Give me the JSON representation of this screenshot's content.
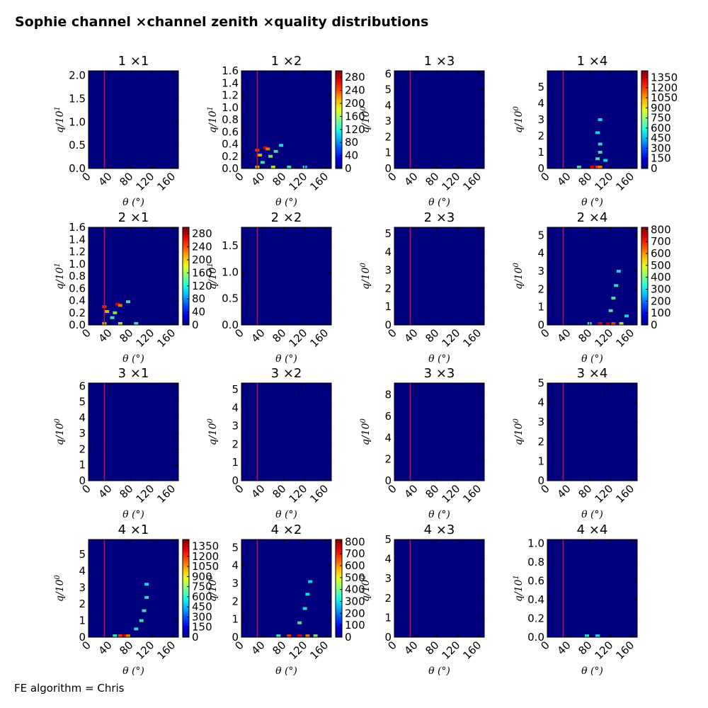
{
  "figure": {
    "title": "Sophie channel ×channel zenith ×quality distributions",
    "footer": "FE algorithm = Chris"
  },
  "colors": {
    "background_low": "#00007f",
    "marker_line": "#ff0000",
    "hotspot_high": "#ffff66"
  },
  "chart_data": {
    "type": "heatmap",
    "colormap": "jet",
    "xlabel": "θ (°)",
    "xlim": [
      0,
      170
    ],
    "xticks": [
      "0",
      "40",
      "80",
      "120",
      "160"
    ],
    "marker_line_x": 30,
    "panels": [
      {
        "title": "1  ×1",
        "ylabel": "q/10^1",
        "ylim": [
          0,
          2.1
        ],
        "yticks": [
          "0.0",
          "0.5",
          "1.0",
          "1.5",
          "2.0"
        ],
        "colorbar": null
      },
      {
        "title": "1  ×2",
        "ylabel": "q/10^1",
        "ylim": [
          0,
          1.6
        ],
        "yticks": [
          "0.0",
          "0.2",
          "0.4",
          "0.6",
          "0.8",
          "1.0",
          "1.2",
          "1.4",
          "1.6"
        ],
        "colorbar": {
          "max": 300,
          "ticks": [
            "0",
            "40",
            "80",
            "120",
            "160",
            "200",
            "240",
            "280"
          ]
        }
      },
      {
        "title": "1  ×3",
        "ylabel": "q/10^0",
        "ylim": [
          0,
          6.2
        ],
        "yticks": [
          "0",
          "1",
          "2",
          "3",
          "4",
          "5",
          "6"
        ],
        "colorbar": null
      },
      {
        "title": "1  ×4",
        "ylabel": "q/10^0",
        "ylim": [
          0,
          6.0
        ],
        "yticks": [
          "0",
          "1",
          "2",
          "3",
          "4",
          "5"
        ],
        "colorbar": {
          "max": 1450,
          "ticks": [
            "0",
            "150",
            "300",
            "450",
            "600",
            "750",
            "900",
            "1050",
            "1200",
            "1350"
          ]
        }
      },
      {
        "title": "2  ×1",
        "ylabel": "q/10^1",
        "ylim": [
          0,
          1.6
        ],
        "yticks": [
          "0.0",
          "0.2",
          "0.4",
          "0.6",
          "0.8",
          "1.0",
          "1.2",
          "1.4",
          "1.6"
        ],
        "colorbar": {
          "max": 300,
          "ticks": [
            "0",
            "40",
            "80",
            "120",
            "160",
            "200",
            "240",
            "280"
          ]
        }
      },
      {
        "title": "2  ×2",
        "ylabel": "q/10^1",
        "ylim": [
          0,
          1.85
        ],
        "yticks": [
          "0.0",
          "0.5",
          "1.0",
          "1.5"
        ],
        "colorbar": null
      },
      {
        "title": "2  ×3",
        "ylabel": "q/10^0",
        "ylim": [
          0,
          5.35
        ],
        "yticks": [
          "0",
          "1",
          "2",
          "3",
          "4",
          "5"
        ],
        "colorbar": null
      },
      {
        "title": "2  ×4",
        "ylabel": "q/10^0",
        "ylim": [
          0,
          5.45
        ],
        "yticks": [
          "0",
          "1",
          "2",
          "3",
          "4",
          "5"
        ],
        "colorbar": {
          "max": 820,
          "ticks": [
            "0",
            "100",
            "200",
            "300",
            "400",
            "500",
            "600",
            "700",
            "800"
          ]
        }
      },
      {
        "title": "3  ×1",
        "ylabel": "q/10^0",
        "ylim": [
          0,
          6.2
        ],
        "yticks": [
          "0",
          "1",
          "2",
          "3",
          "4",
          "5",
          "6"
        ],
        "colorbar": null
      },
      {
        "title": "3  ×2",
        "ylabel": "q/10^0",
        "ylim": [
          0,
          5.35
        ],
        "yticks": [
          "0",
          "1",
          "2",
          "3",
          "4",
          "5"
        ],
        "colorbar": null
      },
      {
        "title": "3  ×3",
        "ylabel": "q/10^0",
        "ylim": [
          0,
          9.1
        ],
        "yticks": [
          "0",
          "2",
          "4",
          "6",
          "8"
        ],
        "colorbar": null
      },
      {
        "title": "3  ×4",
        "ylabel": "q/10^0",
        "ylim": [
          0,
          5.0
        ],
        "yticks": [
          "0",
          "1",
          "2",
          "3",
          "4",
          "5"
        ],
        "colorbar": null
      },
      {
        "title": "4  ×1",
        "ylabel": "q/10^0",
        "ylim": [
          0,
          5.9
        ],
        "yticks": [
          "0",
          "1",
          "2",
          "3",
          "4",
          "5"
        ],
        "colorbar": {
          "max": 1450,
          "ticks": [
            "0",
            "150",
            "300",
            "450",
            "600",
            "750",
            "900",
            "1050",
            "1200",
            "1350"
          ]
        }
      },
      {
        "title": "4  ×2",
        "ylabel": "q/10^0",
        "ylim": [
          0,
          5.45
        ],
        "yticks": [
          "0",
          "1",
          "2",
          "3",
          "4",
          "5"
        ],
        "colorbar": {
          "max": 820,
          "ticks": [
            "0",
            "100",
            "200",
            "300",
            "400",
            "500",
            "600",
            "700",
            "800"
          ]
        }
      },
      {
        "title": "4  ×3",
        "ylabel": "q/10^0",
        "ylim": [
          0,
          5.0
        ],
        "yticks": [
          "0",
          "1",
          "2",
          "3",
          "4",
          "5"
        ],
        "colorbar": null
      },
      {
        "title": "4  ×4",
        "ylabel": "q/10^1",
        "ylim": [
          0,
          1.04
        ],
        "yticks": [
          "0.0",
          "0.2",
          "0.4",
          "0.6",
          "0.8",
          "1.0"
        ],
        "colorbar": null
      }
    ],
    "hotspots": [
      {
        "panel": 1,
        "points": [
          [
            30,
            0.3,
            0.8
          ],
          [
            35,
            0.22,
            0.6
          ],
          [
            45,
            0.34,
            0.9
          ],
          [
            50,
            0.32,
            0.7
          ],
          [
            55,
            0.2,
            0.4
          ],
          [
            40,
            0.1,
            0.3
          ],
          [
            65,
            0.28,
            0.3
          ],
          [
            75,
            0.38,
            0.2
          ],
          [
            30,
            0.02,
            0.6
          ],
          [
            60,
            0.02,
            0.5
          ],
          [
            90,
            0.02,
            0.3
          ],
          [
            120,
            0.02,
            0.2
          ]
        ]
      },
      {
        "panel": 3,
        "points": [
          [
            85,
            0.05,
            0.9
          ],
          [
            95,
            0.05,
            0.8
          ],
          [
            100,
            0.05,
            0.7
          ],
          [
            95,
            0.6,
            0.3
          ],
          [
            100,
            1.0,
            0.3
          ],
          [
            100,
            1.5,
            0.25
          ],
          [
            95,
            2.2,
            0.2
          ],
          [
            100,
            3.0,
            0.2
          ],
          [
            60,
            0.05,
            0.3
          ],
          [
            110,
            0.5,
            0.2
          ]
        ]
      },
      {
        "panel": 4,
        "points": [
          [
            30,
            0.3,
            0.8
          ],
          [
            35,
            0.22,
            0.6
          ],
          [
            55,
            0.34,
            0.9
          ],
          [
            60,
            0.32,
            0.7
          ],
          [
            50,
            0.2,
            0.4
          ],
          [
            45,
            0.12,
            0.3
          ],
          [
            75,
            0.38,
            0.3
          ],
          [
            30,
            0.02,
            0.6
          ],
          [
            60,
            0.02,
            0.5
          ],
          [
            90,
            0.02,
            0.3
          ]
        ]
      },
      {
        "panel": 7,
        "points": [
          [
            100,
            0.05,
            0.9
          ],
          [
            115,
            0.05,
            1.0
          ],
          [
            125,
            0.05,
            0.8
          ],
          [
            140,
            0.05,
            0.5
          ],
          [
            120,
            0.8,
            0.3
          ],
          [
            125,
            1.5,
            0.3
          ],
          [
            130,
            2.2,
            0.25
          ],
          [
            135,
            3.0,
            0.2
          ],
          [
            80,
            0.05,
            0.3
          ],
          [
            150,
            0.5,
            0.2
          ]
        ]
      },
      {
        "panel": 12,
        "points": [
          [
            60,
            0.05,
            0.8
          ],
          [
            70,
            0.05,
            0.9
          ],
          [
            75,
            0.05,
            0.7
          ],
          [
            90,
            0.5,
            0.25
          ],
          [
            100,
            1.0,
            0.3
          ],
          [
            105,
            1.6,
            0.3
          ],
          [
            110,
            2.4,
            0.25
          ],
          [
            110,
            3.2,
            0.2
          ],
          [
            50,
            0.05,
            0.3
          ]
        ]
      },
      {
        "panel": 13,
        "points": [
          [
            90,
            0.05,
            0.8
          ],
          [
            110,
            0.05,
            0.9
          ],
          [
            125,
            0.05,
            0.7
          ],
          [
            140,
            0.05,
            0.4
          ],
          [
            110,
            0.8,
            0.3
          ],
          [
            120,
            1.6,
            0.25
          ],
          [
            125,
            2.4,
            0.2
          ],
          [
            130,
            3.1,
            0.2
          ],
          [
            70,
            0.05,
            0.3
          ]
        ]
      },
      {
        "panel": 15,
        "points": [
          [
            75,
            0.01,
            0.25
          ],
          [
            95,
            0.01,
            0.2
          ]
        ]
      }
    ]
  }
}
